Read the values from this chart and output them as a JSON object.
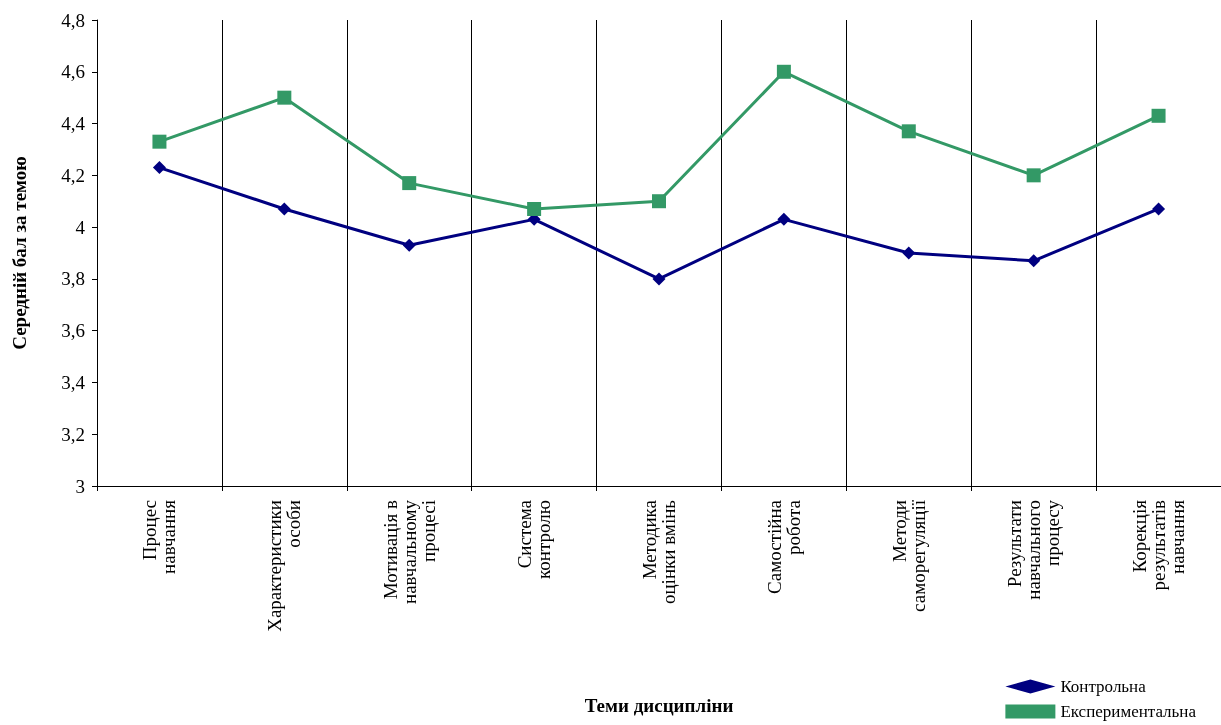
{
  "chart_data": {
    "type": "line",
    "xlabel": "Теми дисципліни",
    "ylabel": "Середній бал за темою",
    "categories": [
      "Процес\nнавчання",
      "Характеристики\nособи",
      "Мотивація в\nнавчальному\nпроцесі",
      "Система\nконтролю",
      "Методика\nоцінки вмінь",
      "Самостійна\nробота",
      "Методи\nсаморегуляції",
      "Результати\nнавчального\nпроцесу",
      "Корекція\nрезультатів\nнавчання"
    ],
    "series": [
      {
        "name": "Контрольна",
        "color": "#000080",
        "marker": "diamond",
        "values": [
          4.23,
          4.07,
          3.93,
          4.03,
          3.8,
          4.03,
          3.9,
          3.87,
          4.07
        ]
      },
      {
        "name": "Експериментальна",
        "color": "#339966",
        "marker": "square",
        "values": [
          4.33,
          4.5,
          4.17,
          4.07,
          4.1,
          4.6,
          4.37,
          4.2,
          4.43
        ]
      }
    ],
    "ylim": [
      3,
      4.8
    ],
    "yticks": [
      3,
      {
        "value": 3.2,
        "label": "3,2"
      },
      {
        "value": 3.4,
        "label": "3,4"
      },
      {
        "value": 3.6,
        "label": "3,6"
      },
      {
        "value": 3.8,
        "label": "3,8"
      },
      4,
      {
        "value": 4.2,
        "label": "4,2"
      },
      {
        "value": 4.4,
        "label": "4,4"
      },
      {
        "value": 4.6,
        "label": "4,6"
      },
      {
        "value": 4.8,
        "label": "4,8"
      }
    ],
    "grid": "x",
    "legend": "bottom right",
    "line_style": "solid"
  }
}
